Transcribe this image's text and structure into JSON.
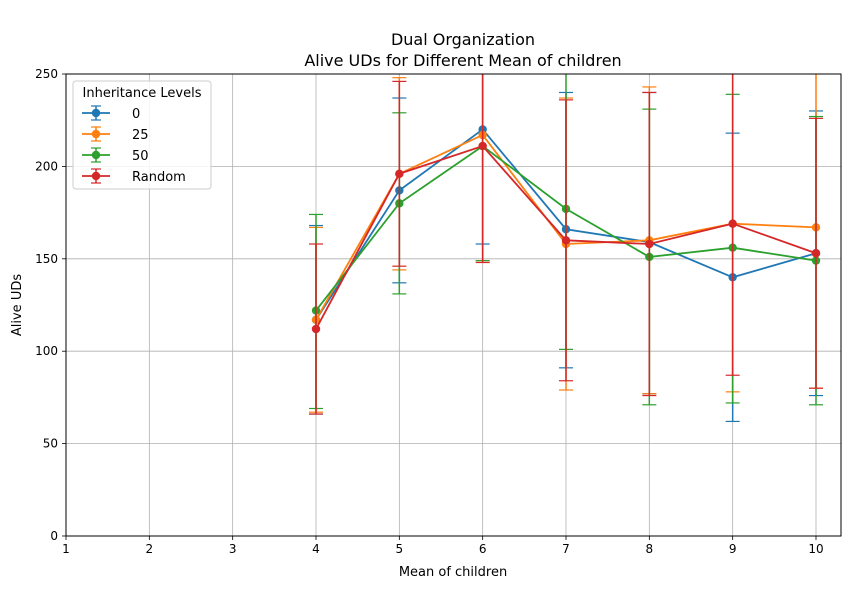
{
  "chart_data": {
    "type": "line",
    "title": "Dual Organization",
    "subtitle": "Alive UDs for Different Mean of children",
    "xlabel": "Mean of children",
    "ylabel": "Alive UDs",
    "xlim": [
      1,
      10.3
    ],
    "ylim": [
      0,
      250
    ],
    "xticks": [
      1,
      2,
      3,
      4,
      5,
      6,
      7,
      8,
      9,
      10
    ],
    "yticks": [
      0,
      50,
      100,
      150,
      200,
      250
    ],
    "grid": true,
    "legend": {
      "title": "Inheritance Levels",
      "placement": "top-left"
    },
    "x": [
      4,
      5,
      6,
      7,
      8,
      9,
      10
    ],
    "series": [
      {
        "name": "0",
        "color": "#1f77b4",
        "values": [
          117,
          187,
          220,
          166,
          159,
          140,
          153
        ],
        "err_low": [
          66,
          137,
          158,
          91,
          77,
          62,
          76
        ],
        "err_high": [
          168,
          237,
          282,
          240,
          240,
          218,
          230
        ]
      },
      {
        "name": "25",
        "color": "#ff7f0e",
        "values": [
          117,
          196,
          217,
          158,
          160,
          169,
          167
        ],
        "err_low": [
          67,
          144,
          149,
          79,
          77,
          78,
          80
        ],
        "err_high": [
          167,
          248,
          285,
          237,
          243,
          260,
          254
        ]
      },
      {
        "name": "50",
        "color": "#2ca02c",
        "values": [
          122,
          180,
          211,
          177,
          151,
          156,
          149
        ],
        "err_low": [
          69,
          131,
          149,
          101,
          71,
          72,
          71
        ],
        "err_high": [
          174,
          229,
          273,
          253,
          231,
          239,
          227
        ]
      },
      {
        "name": "Random",
        "color": "#d62728",
        "values": [
          112,
          196,
          211,
          160,
          158,
          169,
          153
        ],
        "err_low": [
          66,
          146,
          148,
          84,
          76,
          87,
          80
        ],
        "err_high": [
          158,
          246,
          274,
          236,
          240,
          251,
          226
        ]
      }
    ]
  }
}
